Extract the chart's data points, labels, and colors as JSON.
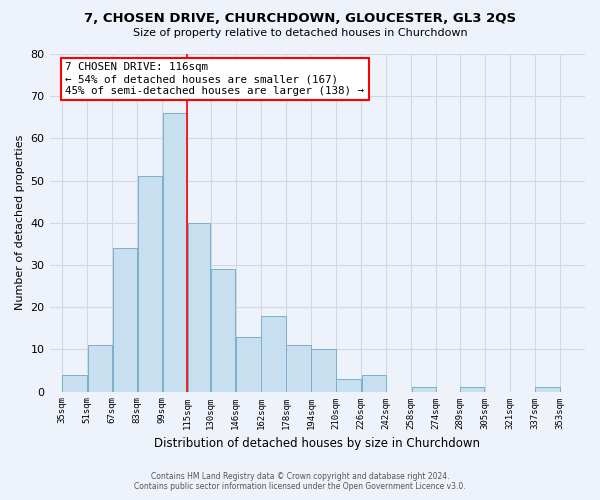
{
  "title": "7, CHOSEN DRIVE, CHURCHDOWN, GLOUCESTER, GL3 2QS",
  "subtitle": "Size of property relative to detached houses in Churchdown",
  "xlabel": "Distribution of detached houses by size in Churchdown",
  "ylabel": "Number of detached properties",
  "bar_color": "#c8dff0",
  "bar_edge_color": "#7ab0cc",
  "bar_left_edges": [
    35,
    51,
    67,
    83,
    99,
    115,
    130,
    146,
    162,
    178,
    194,
    210,
    226,
    242,
    258,
    274,
    289,
    305,
    321,
    337
  ],
  "bar_widths": [
    16,
    16,
    16,
    16,
    16,
    15,
    16,
    16,
    16,
    16,
    16,
    16,
    16,
    16,
    16,
    15,
    16,
    16,
    16,
    16
  ],
  "bar_heights": [
    4,
    11,
    34,
    51,
    66,
    40,
    29,
    13,
    18,
    11,
    10,
    3,
    4,
    0,
    1,
    0,
    1,
    0,
    0,
    1
  ],
  "tick_labels": [
    "35sqm",
    "51sqm",
    "67sqm",
    "83sqm",
    "99sqm",
    "115sqm",
    "130sqm",
    "146sqm",
    "162sqm",
    "178sqm",
    "194sqm",
    "210sqm",
    "226sqm",
    "242sqm",
    "258sqm",
    "274sqm",
    "289sqm",
    "305sqm",
    "321sqm",
    "337sqm",
    "353sqm"
  ],
  "property_line_x": 115,
  "annotation_line1": "7 CHOSEN DRIVE: 116sqm",
  "annotation_line2": "← 54% of detached houses are smaller (167)",
  "annotation_line3": "45% of semi-detached houses are larger (138) →",
  "ylim": [
    0,
    80
  ],
  "yticks": [
    0,
    10,
    20,
    30,
    40,
    50,
    60,
    70,
    80
  ],
  "xlim_left": 27,
  "xlim_right": 369,
  "grid_color": "#d0d8e8",
  "footer_line1": "Contains HM Land Registry data © Crown copyright and database right 2024.",
  "footer_line2": "Contains public sector information licensed under the Open Government Licence v3.0.",
  "background_color": "#eef2fb"
}
